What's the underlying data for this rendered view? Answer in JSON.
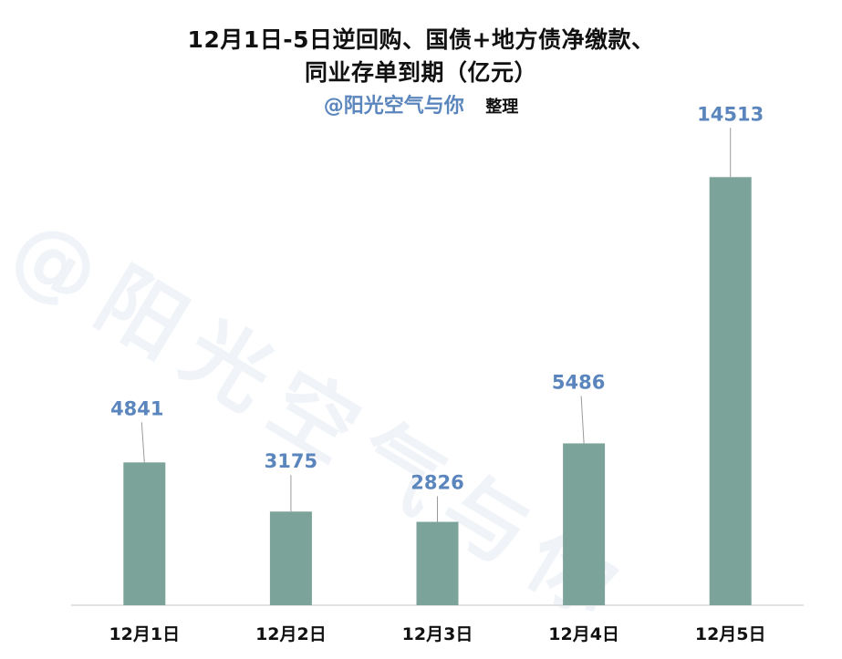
{
  "title_line_1": "12月1日-5日逆回购、国债+地方债净缴款、",
  "title_line_2": "同业存单到期（亿元）",
  "credit_handle": "@阳光空气与你",
  "credit_suffix": "整理",
  "watermark": "@阳光空气与你",
  "colors": {
    "bar": "#7ca39a",
    "value_label": "#5b86bd",
    "leader_line": "#9a9a9a",
    "axis": "#d9d9d9"
  },
  "chart_data": {
    "type": "bar",
    "categories": [
      "12月1日",
      "12月2日",
      "12月3日",
      "12月4日",
      "12月5日"
    ],
    "values": [
      4841,
      3175,
      2826,
      5486,
      14513
    ],
    "value_labels": [
      "4841",
      "3175",
      "2826",
      "5486",
      "14513"
    ],
    "title": "12月1日-5日逆回购、国债+地方债净缴款、同业存单到期（亿元）",
    "xlabel": "",
    "ylabel": "",
    "ylim": [
      0,
      16500
    ],
    "grid": false,
    "legend": "none"
  }
}
